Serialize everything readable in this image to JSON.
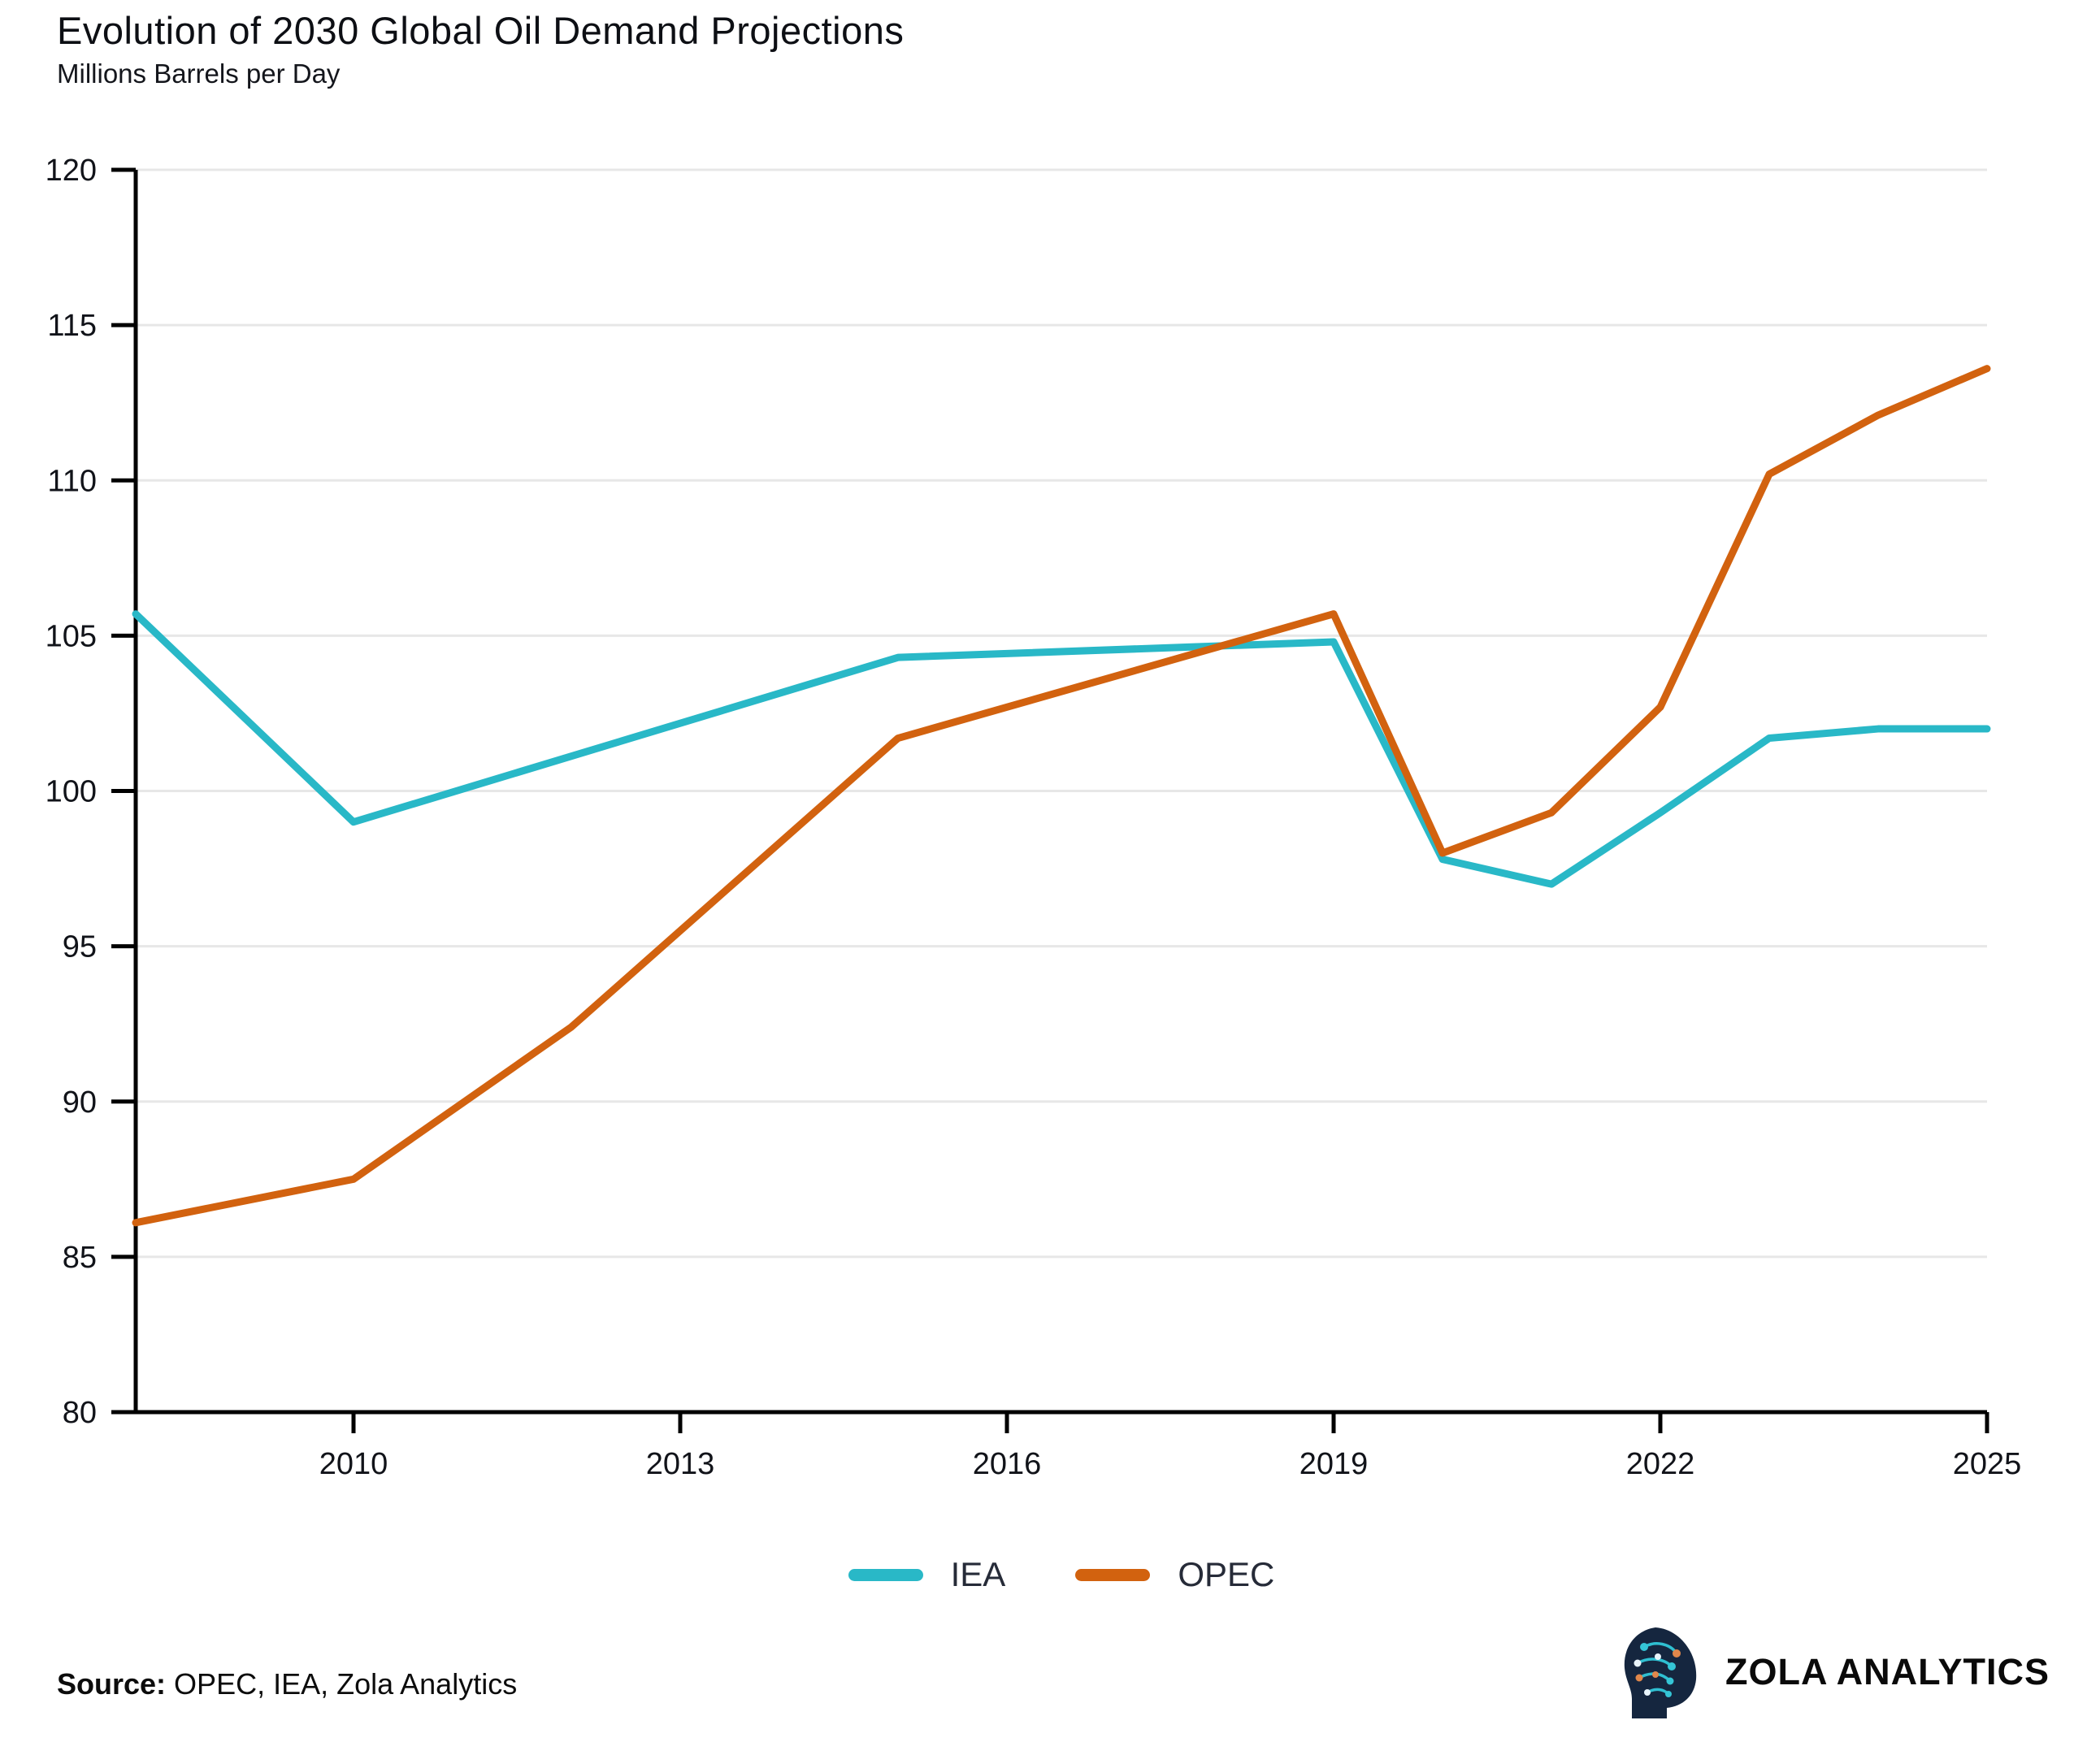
{
  "header": {
    "title": "Evolution of 2030 Global Oil Demand Projections",
    "subtitle": "Millions Barrels per Day"
  },
  "chart_data": {
    "type": "line",
    "title": "Evolution of 2030 Global Oil Demand Projections",
    "ylabel": "Millions Barrels per Day",
    "xlabel": "",
    "xlim": [
      2008,
      2025
    ],
    "ylim": [
      80,
      120
    ],
    "x_ticks": [
      2010,
      2013,
      2016,
      2019,
      2022,
      2025
    ],
    "y_ticks": [
      80,
      85,
      90,
      95,
      100,
      105,
      110,
      115,
      120
    ],
    "grid": "horizontal",
    "legend_position": "bottom-center",
    "series": [
      {
        "name": "IEA",
        "color": "#29b8c7",
        "points": [
          [
            2008,
            105.7
          ],
          [
            2010,
            99.0
          ],
          [
            2015,
            104.3
          ],
          [
            2019,
            104.8
          ],
          [
            2020,
            97.8
          ],
          [
            2021,
            97.0
          ],
          [
            2022,
            99.3
          ],
          [
            2023,
            101.7
          ],
          [
            2024,
            102.0
          ],
          [
            2025,
            102.0
          ]
        ]
      },
      {
        "name": "OPEC",
        "color": "#d2620f",
        "points": [
          [
            2008,
            86.1
          ],
          [
            2010,
            87.5
          ],
          [
            2012,
            92.4
          ],
          [
            2015,
            101.7
          ],
          [
            2019,
            105.7
          ],
          [
            2020,
            98.0
          ],
          [
            2021,
            99.3
          ],
          [
            2022,
            102.7
          ],
          [
            2023,
            110.2
          ],
          [
            2024,
            112.1
          ],
          [
            2025,
            113.6
          ]
        ]
      }
    ]
  },
  "legend": {
    "items": [
      {
        "label": "IEA",
        "color": "#29b8c7"
      },
      {
        "label": "OPEC",
        "color": "#d2620f"
      }
    ]
  },
  "footer": {
    "source_label": "Source:",
    "source_text": " OPEC, IEA, Zola Analytics"
  },
  "branding": {
    "name": "ZOLA ANALYTICS",
    "logo": "zola-head-logo"
  },
  "colors": {
    "iea_line": "#29b8c7",
    "opec_line": "#d2620f",
    "gridline": "#e7e7e7",
    "axis": "#000000",
    "text": "#0d0f14",
    "logo_navy": "#15263f"
  }
}
